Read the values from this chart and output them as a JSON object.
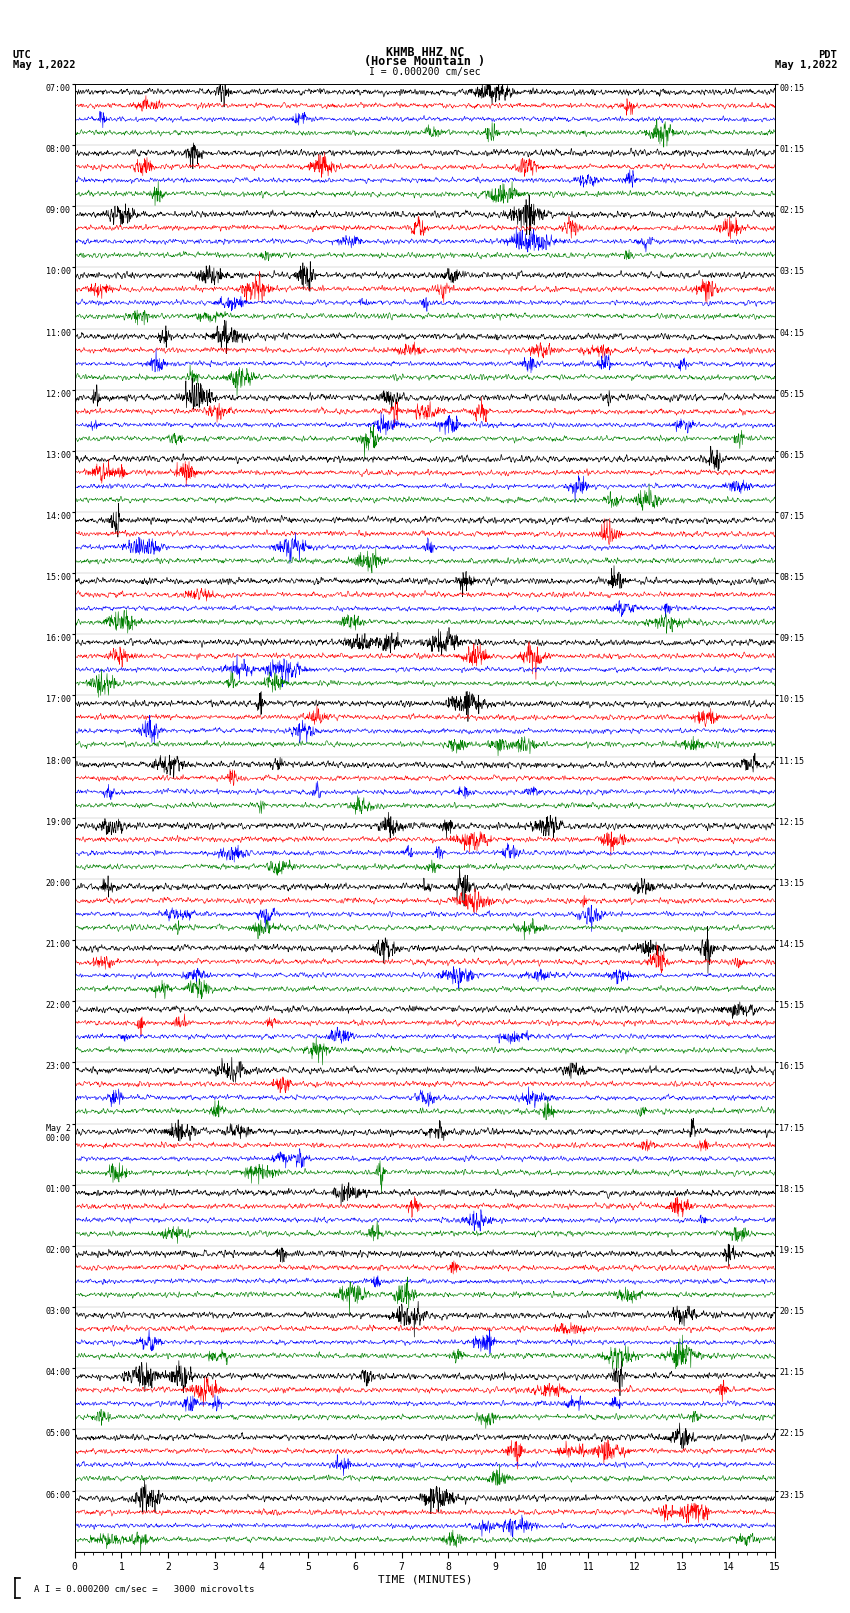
{
  "title_line1": "KHMB HHZ NC",
  "title_line2": "(Horse Mountain )",
  "title_line3": "I = 0.000200 cm/sec",
  "left_header_line1": "UTC",
  "left_header_line2": "May 1,2022",
  "right_header_line1": "PDT",
  "right_header_line2": "May 1,2022",
  "xlabel": "TIME (MINUTES)",
  "scale_label": "A I = 0.000200 cm/sec =   3000 microvolts",
  "time_labels_left": [
    "07:00",
    "08:00",
    "09:00",
    "10:00",
    "11:00",
    "12:00",
    "13:00",
    "14:00",
    "15:00",
    "16:00",
    "17:00",
    "18:00",
    "19:00",
    "20:00",
    "21:00",
    "22:00",
    "23:00",
    "May 2\n00:00",
    "01:00",
    "02:00",
    "03:00",
    "04:00",
    "05:00",
    "06:00"
  ],
  "time_labels_right": [
    "00:15",
    "01:15",
    "02:15",
    "03:15",
    "04:15",
    "05:15",
    "06:15",
    "07:15",
    "08:15",
    "09:15",
    "10:15",
    "11:15",
    "12:15",
    "13:15",
    "14:15",
    "15:15",
    "16:15",
    "17:15",
    "18:15",
    "19:15",
    "20:15",
    "21:15",
    "22:15",
    "23:15"
  ],
  "n_rows": 24,
  "traces_per_row": 4,
  "colors": [
    "black",
    "red",
    "blue",
    "green"
  ],
  "x_min": 0,
  "x_max": 15,
  "x_ticks": [
    0,
    1,
    2,
    3,
    4,
    5,
    6,
    7,
    8,
    9,
    10,
    11,
    12,
    13,
    14,
    15
  ],
  "background_color": "white",
  "noise_amplitude": 0.032,
  "fig_width": 8.5,
  "fig_height": 16.13,
  "dpi": 100
}
